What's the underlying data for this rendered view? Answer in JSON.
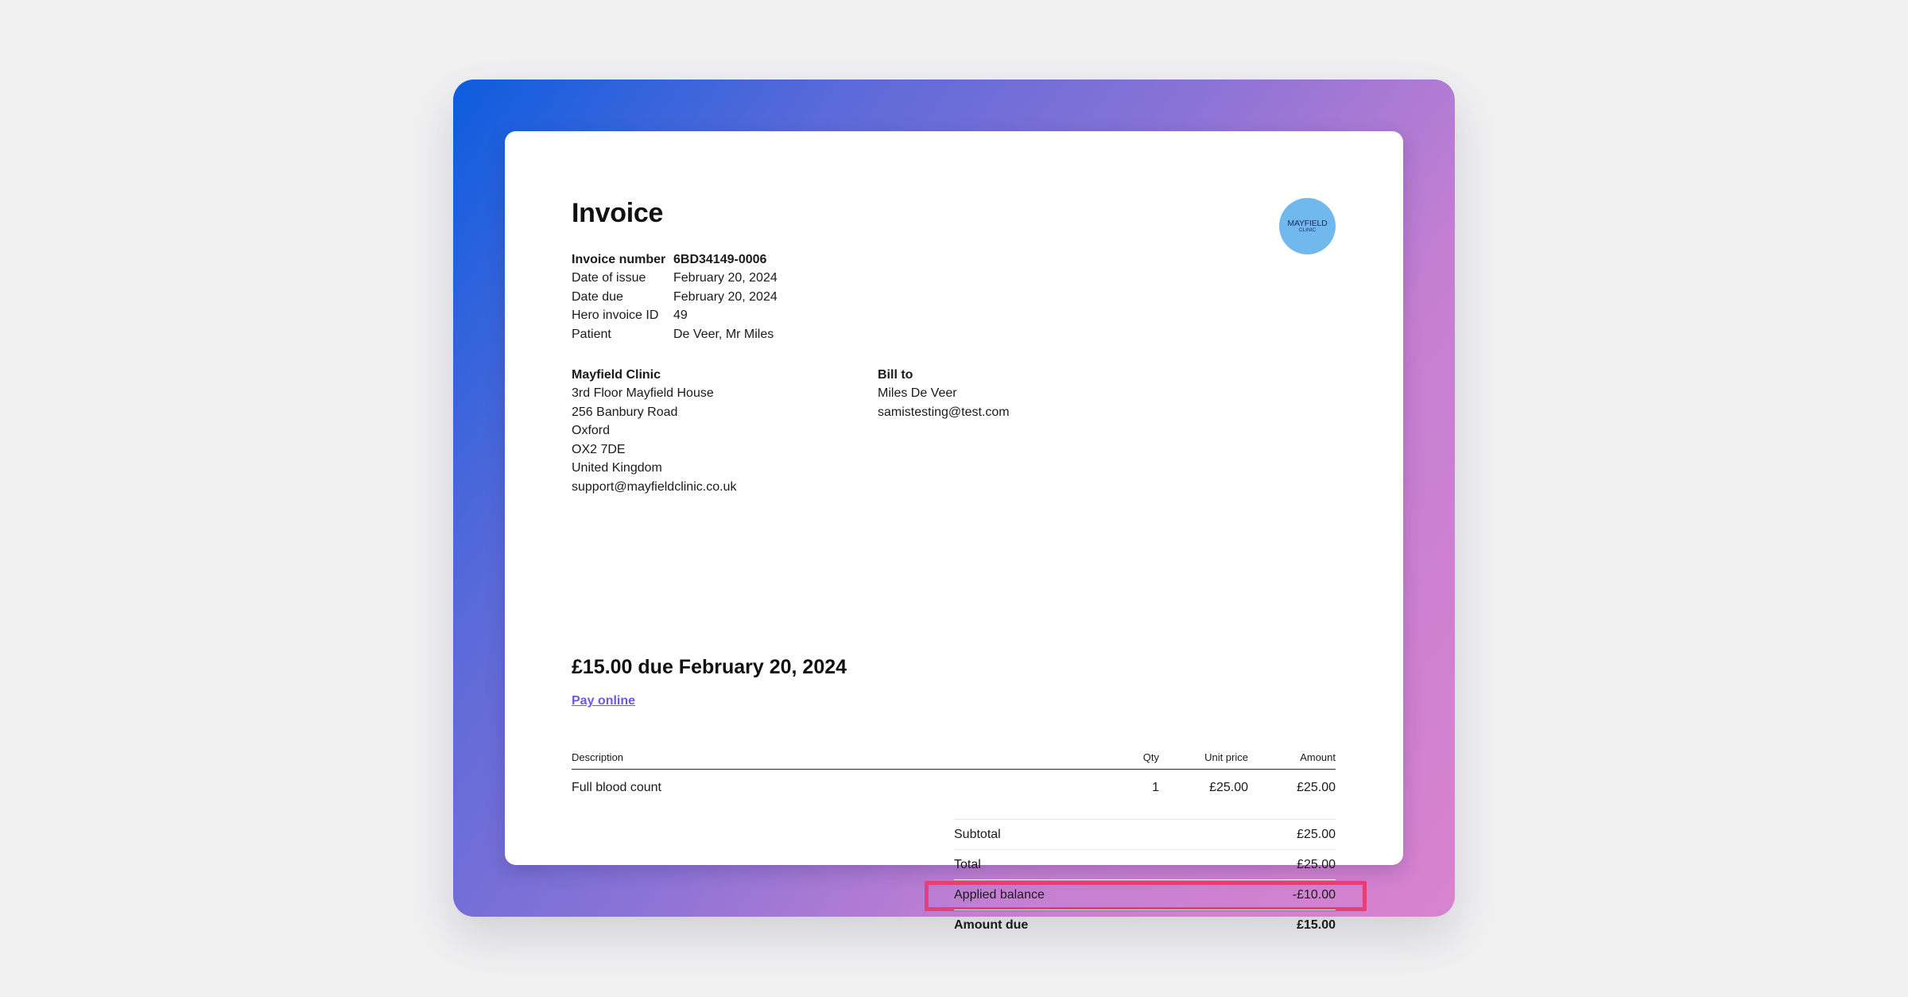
{
  "invoice": {
    "title": "Invoice",
    "logo": {
      "line1": "MAYFIELD",
      "line2": "CLINIC"
    },
    "meta": [
      {
        "key": "Invoice number",
        "value": "6BD34149-0006"
      },
      {
        "key": "Date of issue",
        "value": "February 20, 2024"
      },
      {
        "key": "Date due",
        "value": "February 20, 2024"
      },
      {
        "key": "Hero invoice ID",
        "value": "49"
      },
      {
        "key": "Patient",
        "value": "De Veer, Mr Miles"
      }
    ],
    "from": {
      "name": "Mayfield Clinic",
      "lines": [
        "3rd Floor Mayfield House",
        "256 Banbury Road",
        "Oxford",
        "OX2 7DE",
        "United Kingdom",
        "support@mayfieldclinic.co.uk"
      ]
    },
    "bill_to": {
      "heading": "Bill to",
      "lines": [
        "Miles De Veer",
        "samistesting@test.com"
      ]
    },
    "due_summary": "£15.00 due February 20, 2024",
    "pay_link": "Pay online",
    "table": {
      "headers": {
        "description": "Description",
        "qty": "Qty",
        "unit_price": "Unit price",
        "amount": "Amount"
      },
      "rows": [
        {
          "description": "Full blood count",
          "qty": "1",
          "unit_price": "£25.00",
          "amount": "£25.00"
        }
      ]
    },
    "totals": [
      {
        "label": "Subtotal",
        "value": "£25.00"
      },
      {
        "label": "Total",
        "value": "£25.00"
      },
      {
        "label": "Applied balance",
        "value": "-£10.00",
        "highlighted": true
      },
      {
        "label": "Amount due",
        "value": "£15.00",
        "bold": true
      }
    ]
  },
  "colors": {
    "highlight_border": "#e63e76",
    "link": "#6b5be4",
    "logo_bg": "#71b8ef"
  }
}
